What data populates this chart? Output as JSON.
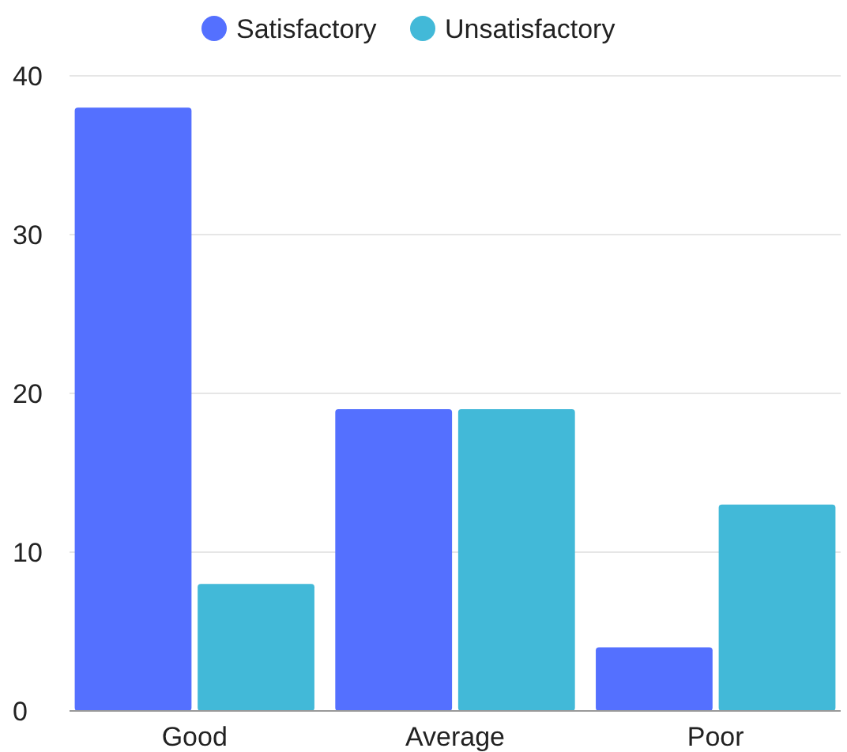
{
  "chart_data": {
    "type": "bar",
    "categories": [
      "Good",
      "Average",
      "Poor"
    ],
    "series": [
      {
        "name": "Satisfactory",
        "color": "#5470ff",
        "values": [
          38,
          19,
          4
        ]
      },
      {
        "name": "Unsatisfactory",
        "color": "#42b9d8",
        "values": [
          8,
          19,
          13
        ]
      }
    ],
    "ylim": [
      0,
      40
    ],
    "yticks": [
      0,
      10,
      20,
      30,
      40
    ],
    "grid": "y",
    "legend": "top"
  }
}
